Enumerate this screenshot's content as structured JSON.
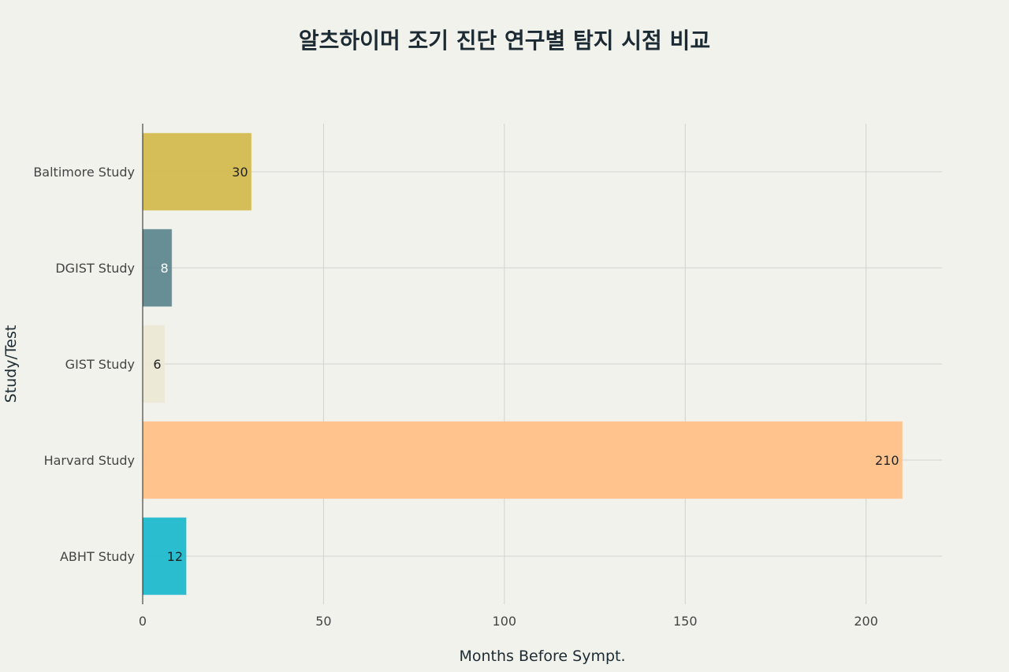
{
  "chart_data": {
    "type": "bar",
    "orientation": "horizontal",
    "title": "알츠하이머 조기 진단 연구별 탐지 시점 비교",
    "xlabel": "Months Before Sympt.",
    "ylabel": "Study/Test",
    "categories": [
      "Baltimore Study",
      "DGIST Study",
      "GIST Study",
      "Harvard Study",
      "ABHT Study"
    ],
    "values": [
      30,
      8,
      6,
      210,
      12
    ],
    "value_labels": [
      "30",
      "8",
      "6",
      "210",
      "12"
    ],
    "colors": [
      "#d3bb4f",
      "#5f8890",
      "#ebe8d5",
      "#ffc189",
      "#1fb8cd"
    ],
    "label_colors": [
      "#222222",
      "#ffffff",
      "#222222",
      "#222222",
      "#222222"
    ],
    "xlim": [
      0,
      221
    ],
    "xticks": [
      0,
      50,
      100,
      150,
      200
    ],
    "xtick_labels": [
      "0",
      "50",
      "100",
      "150",
      "200"
    ],
    "grid": true,
    "legend": "none"
  }
}
